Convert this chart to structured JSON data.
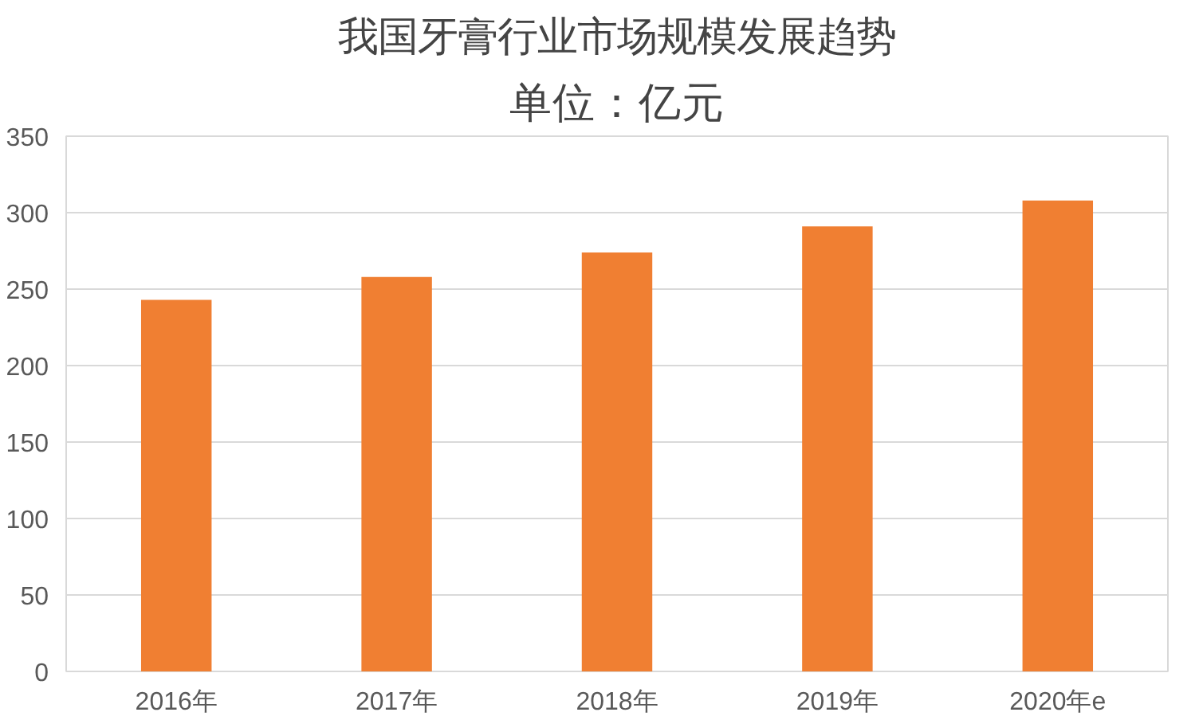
{
  "chart_data": {
    "type": "bar",
    "title": "我国牙膏行业市场规模发展趋势",
    "subtitle": "单位：亿元",
    "categories": [
      "2016年",
      "2017年",
      "2018年",
      "2019年",
      "2020年e"
    ],
    "values": [
      243,
      258,
      274,
      291,
      308
    ],
    "color": "#f07f32",
    "ylim": [
      0,
      350
    ],
    "yticks": [
      0,
      50,
      100,
      150,
      200,
      250,
      300,
      350
    ],
    "grid": "y"
  }
}
